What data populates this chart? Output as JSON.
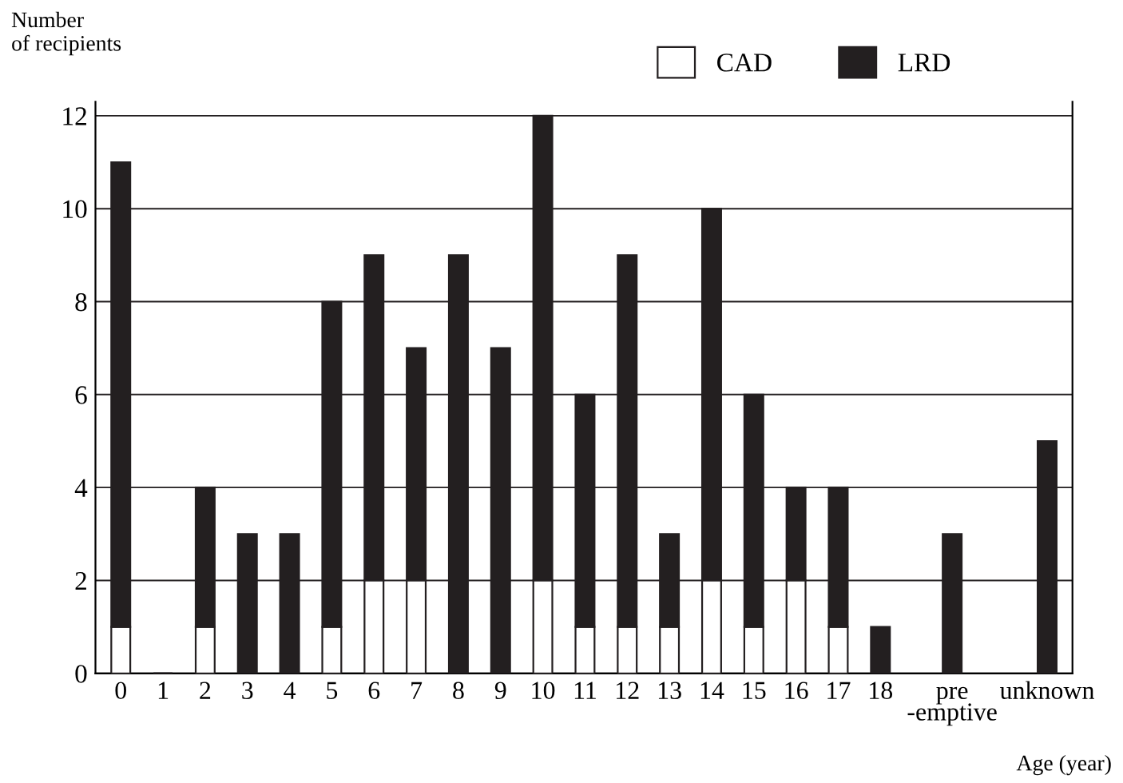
{
  "chart_data": {
    "type": "bar",
    "stacked": true,
    "xlabel": "Age (year)",
    "ylabel": "Number\nof recipients",
    "categories": [
      "0",
      "1",
      "2",
      "3",
      "4",
      "5",
      "6",
      "7",
      "8",
      "9",
      "10",
      "11",
      "12",
      "13",
      "14",
      "15",
      "16",
      "17",
      "18",
      "pre\n-emptive",
      "unknown"
    ],
    "series": [
      {
        "name": "CAD",
        "color": "#ffffff",
        "values": [
          1,
          0,
          1,
          0,
          0,
          1,
          2,
          2,
          0,
          0,
          2,
          1,
          1,
          1,
          2,
          1,
          2,
          1,
          0,
          0,
          0
        ]
      },
      {
        "name": "LRD",
        "color": "#231f20",
        "values": [
          10,
          0,
          3,
          3,
          3,
          7,
          7,
          5,
          9,
          7,
          10,
          5,
          8,
          2,
          8,
          5,
          2,
          3,
          1,
          3,
          5
        ]
      }
    ],
    "ylim": [
      0,
      12.3
    ],
    "yticks": [
      0,
      2,
      4,
      6,
      8,
      10,
      12
    ],
    "grid": "y",
    "legend": "top right"
  }
}
